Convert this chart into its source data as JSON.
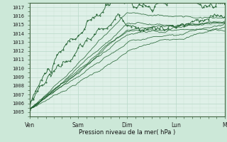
{
  "bg_color": "#cce8d8",
  "plot_bg": "#dff0e8",
  "grid_color": "#b8d8c8",
  "minor_grid_color": "#c8e4d4",
  "line_color": "#1a5c2a",
  "ylabel_values": [
    1005,
    1006,
    1007,
    1008,
    1009,
    1010,
    1011,
    1012,
    1013,
    1014,
    1015,
    1016,
    1017
  ],
  "ylim": [
    1004.5,
    1017.5
  ],
  "xlabel": "Pression niveau de la mer( hPa )",
  "xtick_labels": [
    "Ven",
    "Sam",
    "Dim",
    "Lun",
    "M"
  ],
  "xtick_pos": [
    0,
    48,
    96,
    144,
    192
  ],
  "n_pts": 193
}
